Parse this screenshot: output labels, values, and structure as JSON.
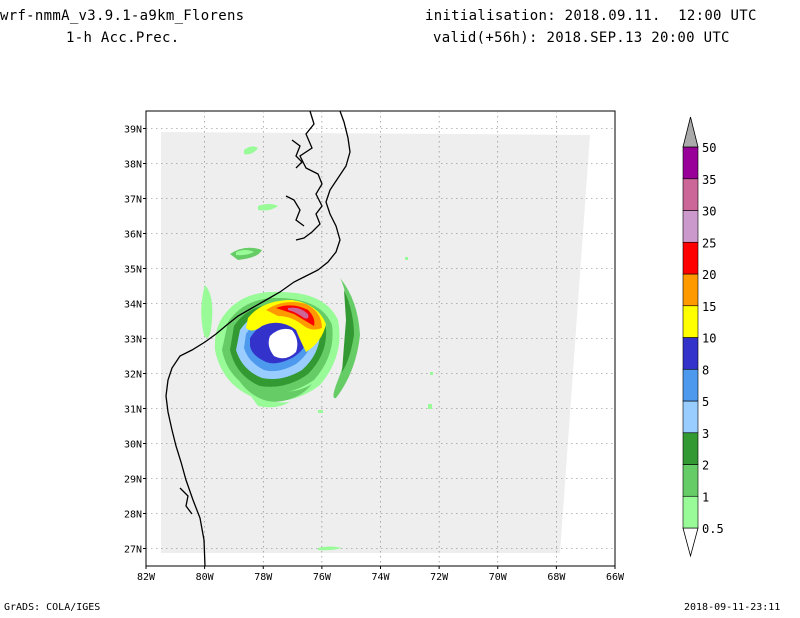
{
  "header": {
    "model": "wrf-nmmA_v3.9.1-a9km_Florens",
    "field": "1-h Acc.Prec.",
    "initialisation": "initialisation: 2018.09.11.  12:00 UTC",
    "valid": "valid(+56h): 2018.SEP.13 20:00 UTC"
  },
  "footer": {
    "credit": "GrADS: COLA/IGES",
    "timestamp": "2018-09-11-23:11"
  },
  "map": {
    "lon_range": [
      -82,
      -66
    ],
    "lat_range": [
      26.5,
      39.5
    ],
    "lon_ticks": [
      "82W",
      "80W",
      "78W",
      "76W",
      "74W",
      "72W",
      "70W",
      "68W",
      "66W"
    ],
    "lat_ticks": [
      "27N",
      "28N",
      "29N",
      "30N",
      "31N",
      "32N",
      "33N",
      "34N",
      "35N",
      "36N",
      "37N",
      "38N",
      "39N"
    ],
    "domain_fill": "#eeeeee",
    "coastline": "black"
  },
  "colorbar": {
    "levels": [
      "0.5",
      "1",
      "2",
      "3",
      "5",
      "8",
      "10",
      "15",
      "20",
      "25",
      "30",
      "35",
      "50"
    ],
    "colors": [
      "#98fb98",
      "#66cc66",
      "#339933",
      "#99ccff",
      "#4d99ee",
      "#3333cc",
      "#ffff00",
      "#ff9900",
      "#ff0000",
      "#cc99cc",
      "#cc6699",
      "#990099",
      "#aaaaaa"
    ],
    "units_hint": "mm"
  }
}
